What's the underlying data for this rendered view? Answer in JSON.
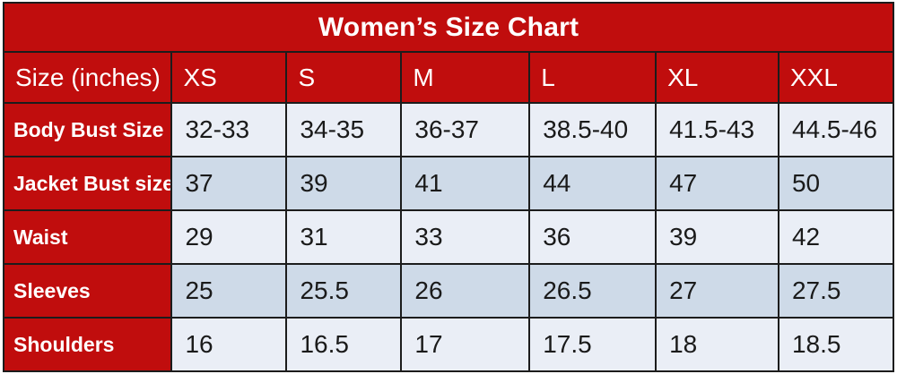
{
  "title": "Women’s Size Chart",
  "colors": {
    "header_red": "#c00d0d",
    "row_light": "#eaeef6",
    "row_dark": "#cedae8",
    "border": "#1c1c1c",
    "text_dark": "#1a1a1a",
    "text_light": "#ffffff"
  },
  "chart_data": {
    "type": "table",
    "title": "Women’s Size Chart",
    "columns": [
      "Size (inches)",
      "XS",
      "S",
      "M",
      "L",
      "XL",
      "XXL"
    ],
    "rows": [
      [
        "Body Bust Size",
        "32-33",
        "34-35",
        "36-37",
        "38.5-40",
        "41.5-43",
        "44.5-46"
      ],
      [
        "Jacket Bust size",
        "37",
        "39",
        "41",
        "44",
        "47",
        "50"
      ],
      [
        "Waist",
        "29",
        "31",
        "33",
        "36",
        "39",
        "42"
      ],
      [
        "Sleeves",
        "25",
        "25.5",
        "26",
        "26.5",
        "27",
        "27.5"
      ],
      [
        "Shoulders",
        "16",
        "16.5",
        "17",
        "17.5",
        "18",
        "18.5"
      ]
    ]
  }
}
